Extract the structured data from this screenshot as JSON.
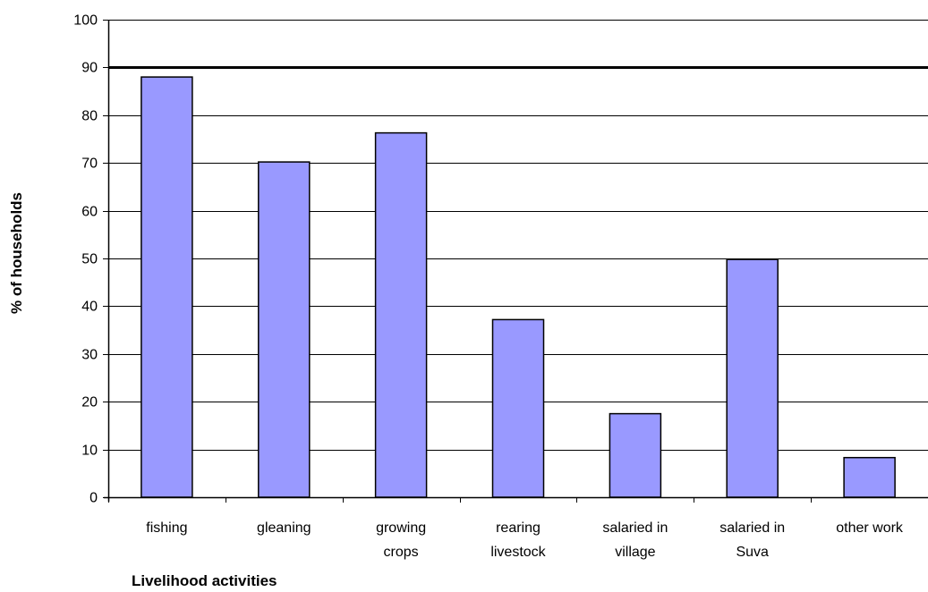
{
  "chart_data": {
    "type": "bar",
    "title": "",
    "xlabel": "Livelihood activities",
    "ylabel": "% of households",
    "categories": [
      [
        "fishing"
      ],
      [
        "gleaning"
      ],
      [
        "growing",
        "crops"
      ],
      [
        "rearing",
        "livestock"
      ],
      [
        "salaried in",
        "village"
      ],
      [
        "salaried in",
        "Suva"
      ],
      [
        "other work"
      ]
    ],
    "values": [
      88,
      70.2,
      76.3,
      37.2,
      17.5,
      49.8,
      8.3
    ],
    "ylim": [
      0,
      100
    ],
    "yticks": [
      0,
      10,
      20,
      30,
      40,
      50,
      60,
      70,
      80,
      90,
      100
    ],
    "reference_line": 90,
    "grid": true,
    "legend": "none",
    "colors": {
      "bar_fill": "#9999ff",
      "bar_edge": "#000000",
      "gridline": "#000000",
      "reference_line": "#000000"
    }
  }
}
